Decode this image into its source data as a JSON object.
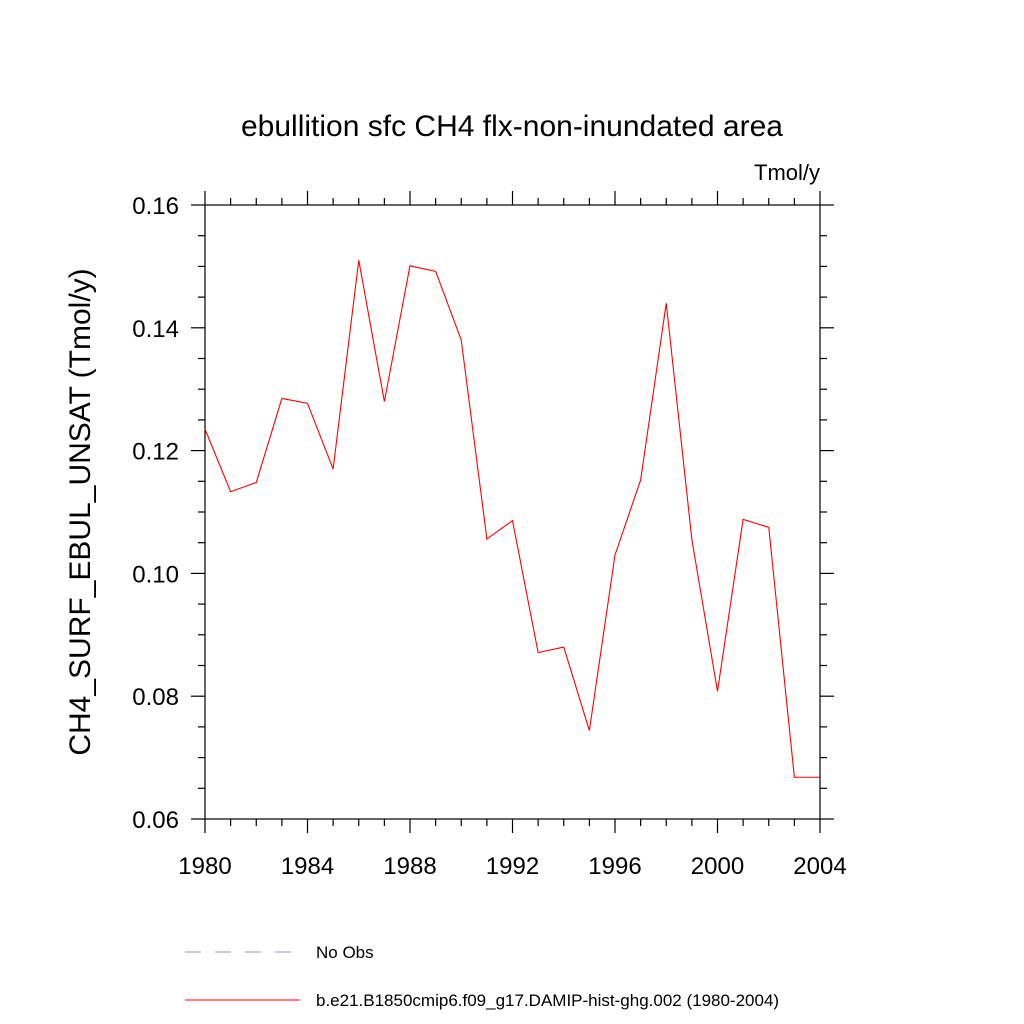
{
  "chart_data": {
    "type": "line",
    "title": "ebullition sfc CH4 flx-non-inundated area",
    "units": "Tmol/y",
    "xlabel": "",
    "ylabel": "CH4_SURF_EBUL_UNSAT  (Tmol/y)",
    "xlim": [
      1980,
      2004
    ],
    "ylim": [
      0.06,
      0.16
    ],
    "x_ticks": [
      1980,
      1984,
      1988,
      1992,
      1996,
      2000,
      2004
    ],
    "x_tick_labels": [
      "1980",
      "1984",
      "1988",
      "1992",
      "1996",
      "2000",
      "2004"
    ],
    "y_ticks": [
      0.06,
      0.08,
      0.1,
      0.12,
      0.14,
      0.16
    ],
    "y_tick_labels": [
      "0.06",
      "0.08",
      "0.10",
      "0.12",
      "0.14",
      "0.16"
    ],
    "grid": false,
    "legend_position": "bottom",
    "series": [
      {
        "name": "b.e21.B1850cmip6.f09_g17.DAMIP-hist-ghg.002 (1980-2004)",
        "color": "#ff0000",
        "style": "solid",
        "x": [
          1980,
          1981,
          1982,
          1983,
          1984,
          1985,
          1986,
          1987,
          1988,
          1989,
          1990,
          1991,
          1992,
          1993,
          1994,
          1995,
          1996,
          1997,
          1998,
          1999,
          2000,
          2001,
          2002,
          2003,
          2004
        ],
        "values": [
          0.1235,
          0.1133,
          0.1148,
          0.1285,
          0.1277,
          0.117,
          0.151,
          0.128,
          0.1501,
          0.1492,
          0.138,
          0.1056,
          0.1086,
          0.0871,
          0.088,
          0.0744,
          0.103,
          0.1152,
          0.144,
          0.1055,
          0.0808,
          0.1088,
          0.1075,
          0.0668,
          0.0668
        ]
      }
    ],
    "legend": [
      {
        "label": "No Obs",
        "color": "#9090d0",
        "style": "dashed"
      },
      {
        "label": "b.e21.B1850cmip6.f09_g17.DAMIP-hist-ghg.002 (1980-2004)",
        "color": "#ff0000",
        "style": "solid"
      }
    ]
  }
}
